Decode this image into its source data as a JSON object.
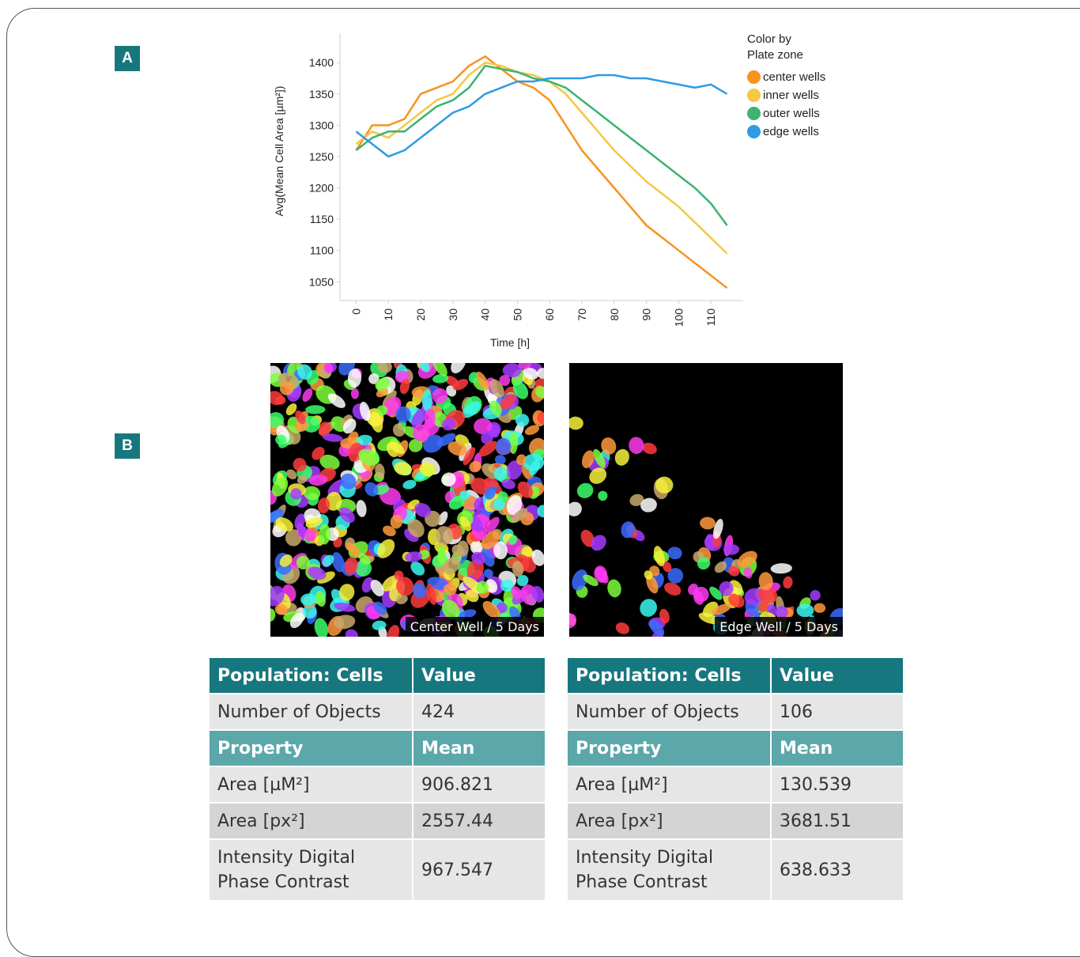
{
  "panel_labels": [
    "A",
    "B"
  ],
  "chart_data": {
    "type": "line",
    "y_label": "Avg(Mean Cell Area [µm²])",
    "x_label": "Time [h]",
    "legend_title": "Color by Plate zone",
    "x": [
      0,
      5,
      10,
      15,
      20,
      25,
      30,
      35,
      40,
      45,
      50,
      55,
      60,
      65,
      70,
      75,
      80,
      85,
      90,
      95,
      100,
      105,
      110,
      115
    ],
    "series": [
      {
        "name": "center wells",
        "color": "#f7931e",
        "values": [
          1260,
          1300,
          1300,
          1310,
          1350,
          1360,
          1370,
          1395,
          1410,
          1390,
          1370,
          1360,
          1340,
          1300,
          1260,
          1230,
          1200,
          1170,
          1140,
          1120,
          1100,
          1080,
          1060,
          1040
        ]
      },
      {
        "name": "inner wells",
        "color": "#f5c842",
        "values": [
          1270,
          1290,
          1280,
          1300,
          1320,
          1340,
          1350,
          1380,
          1400,
          1395,
          1385,
          1380,
          1370,
          1350,
          1320,
          1290,
          1260,
          1235,
          1210,
          1190,
          1170,
          1145,
          1120,
          1095
        ]
      },
      {
        "name": "outer wells",
        "color": "#3cb371",
        "values": [
          1260,
          1280,
          1290,
          1290,
          1310,
          1330,
          1340,
          1360,
          1395,
          1390,
          1385,
          1375,
          1370,
          1360,
          1340,
          1320,
          1300,
          1280,
          1260,
          1240,
          1220,
          1200,
          1175,
          1140
        ]
      },
      {
        "name": "edge wells",
        "color": "#2f9be3",
        "values": [
          1290,
          1270,
          1250,
          1260,
          1280,
          1300,
          1320,
          1330,
          1350,
          1360,
          1370,
          1370,
          1375,
          1375,
          1375,
          1380,
          1380,
          1375,
          1375,
          1370,
          1365,
          1360,
          1365,
          1350
        ]
      }
    ],
    "xlim": [
      -5,
      120
    ],
    "ylim": [
      1020,
      1447
    ],
    "xticks": [
      0,
      10,
      20,
      30,
      40,
      50,
      60,
      70,
      80,
      90,
      100,
      110
    ],
    "yticks": [
      1050,
      1100,
      1150,
      1200,
      1250,
      1300,
      1350,
      1400
    ],
    "grid": false,
    "legend": "right"
  },
  "images": [
    {
      "caption": "Center Well / 5 Days"
    },
    {
      "caption": "Edge Well / 5 Days"
    }
  ],
  "tables": [
    {
      "header": [
        "Population: Cells",
        "Value"
      ],
      "rows": [
        [
          "Number of Objects",
          424
        ],
        [
          "Property",
          "Mean"
        ],
        [
          "Area [µM²]",
          906.821
        ],
        [
          "Area [px²]",
          2557.44
        ],
        [
          "Intensity Digital Phase Contrast",
          967.547
        ]
      ]
    },
    {
      "header": [
        "Population: Cells",
        "Value"
      ],
      "rows": [
        [
          "Number of Objects",
          106
        ],
        [
          "Property",
          "Mean"
        ],
        [
          "Area [µM²]",
          130.539
        ],
        [
          "Area [px²]",
          3681.51
        ],
        [
          "Intensity Digital Phase Contrast",
          638.633
        ]
      ]
    }
  ]
}
